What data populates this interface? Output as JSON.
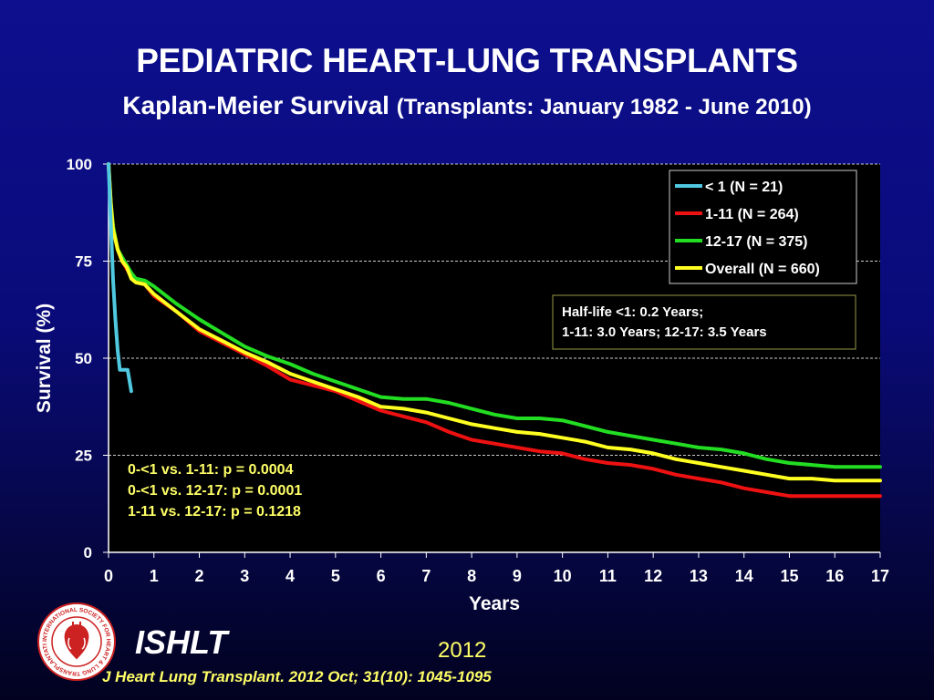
{
  "header": {
    "title": "PEDIATRIC HEART-LUNG TRANSPLANTS",
    "subtitle_main": "Kaplan-Meier Survival",
    "subtitle_detail": "(Transplants: January 1982 - June 2010)"
  },
  "footer": {
    "organization": "ISHLT",
    "year": "2012",
    "citation": "J Heart Lung Transplant.  2012 Oct; 31(10): 1045-1095",
    "logo_text": "INTERNATIONAL SOCIETY FOR HEART & LUNG TRANSPLANTATION"
  },
  "colors": {
    "background": "#0a0b7a",
    "plot_bg": "#000000",
    "annotation_text": "#ffff66"
  },
  "chart_data": {
    "type": "line",
    "xlabel": "Years",
    "ylabel": "Survival (%)",
    "xlim": [
      0,
      17
    ],
    "ylim": [
      0,
      100
    ],
    "xticks": [
      0,
      1,
      2,
      3,
      4,
      5,
      6,
      7,
      8,
      9,
      10,
      11,
      12,
      13,
      14,
      15,
      16,
      17
    ],
    "yticks": [
      0,
      25,
      50,
      75,
      100
    ],
    "grid": "horizontal-dashed",
    "legend_position": "top-right",
    "series": [
      {
        "name": "< 1 (N = 21)",
        "color": "#4fc8e0",
        "points": [
          [
            0,
            100
          ],
          [
            0.05,
            85
          ],
          [
            0.1,
            70
          ],
          [
            0.15,
            60
          ],
          [
            0.2,
            52
          ],
          [
            0.25,
            47
          ],
          [
            0.3,
            47
          ],
          [
            0.4,
            47
          ],
          [
            0.42,
            47
          ],
          [
            0.45,
            45
          ],
          [
            0.5,
            41.5
          ]
        ]
      },
      {
        "name": "1-11 (N = 264)",
        "color": "#ee1111",
        "points": [
          [
            0,
            100
          ],
          [
            0.05,
            90
          ],
          [
            0.1,
            84
          ],
          [
            0.2,
            78
          ],
          [
            0.3,
            75
          ],
          [
            0.4,
            73
          ],
          [
            0.5,
            71
          ],
          [
            0.6,
            70.5
          ],
          [
            0.8,
            69
          ],
          [
            1,
            66
          ],
          [
            1.5,
            62
          ],
          [
            2,
            57
          ],
          [
            2.5,
            54
          ],
          [
            3,
            51
          ],
          [
            3.5,
            48
          ],
          [
            4,
            44.5
          ],
          [
            4.5,
            43
          ],
          [
            5,
            41.5
          ],
          [
            5.5,
            39
          ],
          [
            6,
            36.5
          ],
          [
            6.5,
            35
          ],
          [
            7,
            33.5
          ],
          [
            7.5,
            31
          ],
          [
            8,
            29
          ],
          [
            8.5,
            28
          ],
          [
            9,
            27
          ],
          [
            9.5,
            26
          ],
          [
            10,
            25.5
          ],
          [
            10.5,
            24
          ],
          [
            11,
            23
          ],
          [
            11.5,
            22.5
          ],
          [
            12,
            21.5
          ],
          [
            12.5,
            20
          ],
          [
            13,
            19
          ],
          [
            13.5,
            18
          ],
          [
            14,
            16.5
          ],
          [
            14.5,
            15.5
          ],
          [
            15,
            14.5
          ],
          [
            15.5,
            14.5
          ],
          [
            16,
            14.5
          ],
          [
            17,
            14.5
          ]
        ]
      },
      {
        "name": "12-17 (N = 375)",
        "color": "#22dd22",
        "points": [
          [
            0,
            100
          ],
          [
            0.05,
            90
          ],
          [
            0.1,
            84
          ],
          [
            0.2,
            78
          ],
          [
            0.3,
            76
          ],
          [
            0.4,
            74
          ],
          [
            0.5,
            72
          ],
          [
            0.6,
            70.5
          ],
          [
            0.8,
            70
          ],
          [
            1,
            68.5
          ],
          [
            1.5,
            64
          ],
          [
            2,
            60
          ],
          [
            2.5,
            56.5
          ],
          [
            3,
            53
          ],
          [
            3.5,
            50.5
          ],
          [
            4,
            48.5
          ],
          [
            4.5,
            46
          ],
          [
            5,
            44
          ],
          [
            5.5,
            42
          ],
          [
            6,
            40
          ],
          [
            6.5,
            39.5
          ],
          [
            7,
            39.5
          ],
          [
            7.5,
            38.5
          ],
          [
            8,
            37
          ],
          [
            8.5,
            35.5
          ],
          [
            9,
            34.5
          ],
          [
            9.5,
            34.5
          ],
          [
            10,
            34
          ],
          [
            10.5,
            32.5
          ],
          [
            11,
            31
          ],
          [
            11.5,
            30
          ],
          [
            12,
            29
          ],
          [
            12.5,
            28
          ],
          [
            13,
            27
          ],
          [
            13.5,
            26.5
          ],
          [
            14,
            25.5
          ],
          [
            14.5,
            24
          ],
          [
            15,
            23
          ],
          [
            15.5,
            22.5
          ],
          [
            16,
            22
          ],
          [
            17,
            22
          ]
        ]
      },
      {
        "name": "Overall (N = 660)",
        "color": "#ffff22",
        "points": [
          [
            0,
            100
          ],
          [
            0.05,
            90
          ],
          [
            0.1,
            83
          ],
          [
            0.2,
            78
          ],
          [
            0.3,
            75
          ],
          [
            0.4,
            73.5
          ],
          [
            0.5,
            70.5
          ],
          [
            0.6,
            69.5
          ],
          [
            0.8,
            69
          ],
          [
            1,
            66.5
          ],
          [
            1.5,
            62
          ],
          [
            2,
            57.5
          ],
          [
            2.5,
            54.5
          ],
          [
            3,
            51.5
          ],
          [
            3.5,
            49
          ],
          [
            4,
            46
          ],
          [
            4.5,
            44
          ],
          [
            5,
            42
          ],
          [
            5.5,
            40
          ],
          [
            6,
            37.5
          ],
          [
            6.5,
            37
          ],
          [
            7,
            36
          ],
          [
            7.5,
            34.5
          ],
          [
            8,
            33
          ],
          [
            8.5,
            32
          ],
          [
            9,
            31
          ],
          [
            9.5,
            30.5
          ],
          [
            10,
            29.5
          ],
          [
            10.5,
            28.5
          ],
          [
            11,
            27
          ],
          [
            11.5,
            26.5
          ],
          [
            12,
            25.5
          ],
          [
            12.5,
            24
          ],
          [
            13,
            23
          ],
          [
            13.5,
            22
          ],
          [
            14,
            21
          ],
          [
            14.5,
            20
          ],
          [
            15,
            19
          ],
          [
            15.5,
            19
          ],
          [
            16,
            18.5
          ],
          [
            17,
            18.5
          ]
        ]
      }
    ],
    "annotations": {
      "half_life": [
        "Half-life <1: 0.2 Years;",
        "1-11: 3.0 Years; 12-17: 3.5 Years"
      ],
      "p_values": [
        "0-<1 vs. 1-11: p = 0.0004",
        "0-<1 vs. 12-17: p = 0.0001",
        "1-11 vs. 12-17: p = 0.1218"
      ]
    }
  }
}
